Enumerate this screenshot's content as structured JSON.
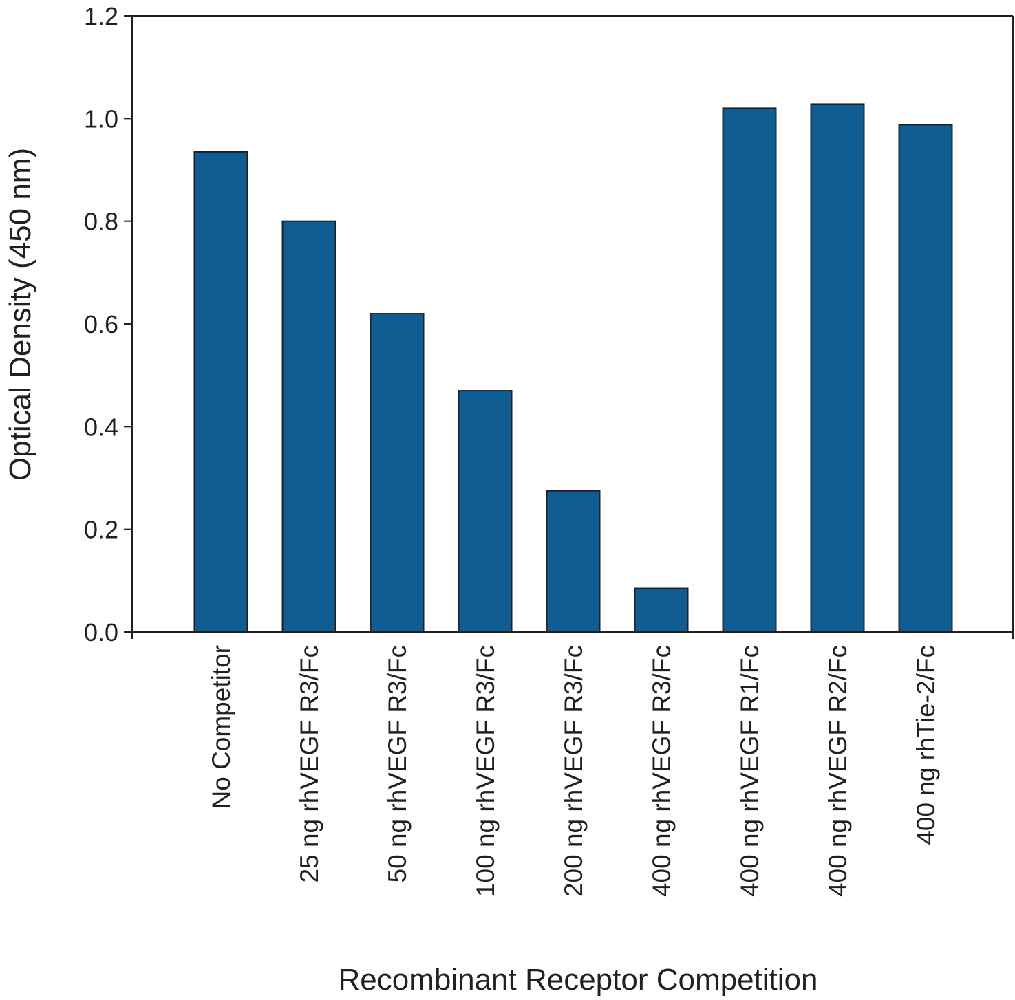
{
  "chart_data": {
    "type": "bar",
    "title": "",
    "xlabel": "Recombinant Receptor Competition",
    "ylabel": "Optical Density  (450 nm)",
    "ylim": [
      0,
      1.2
    ],
    "yticks": [
      "0.0",
      "0.2",
      "0.4",
      "0.6",
      "0.8",
      "1.0",
      "1.2"
    ],
    "grid": false,
    "legend": "none",
    "bar_color": "#0f5c93",
    "categories": [
      "No Competitor",
      "25 ng rhVEGF R3/Fc",
      "50 ng rhVEGF R3/Fc",
      "100 ng rhVEGF R3/Fc",
      "200 ng rhVEGF R3/Fc",
      "400 ng rhVEGF R3/Fc",
      "400 ng rhVEGF R1/Fc",
      "400 ng rhVEGF R2/Fc",
      "400 ng rhTie-2/Fc"
    ],
    "values": [
      0.935,
      0.8,
      0.62,
      0.47,
      0.275,
      0.085,
      1.02,
      1.028,
      0.988
    ]
  }
}
